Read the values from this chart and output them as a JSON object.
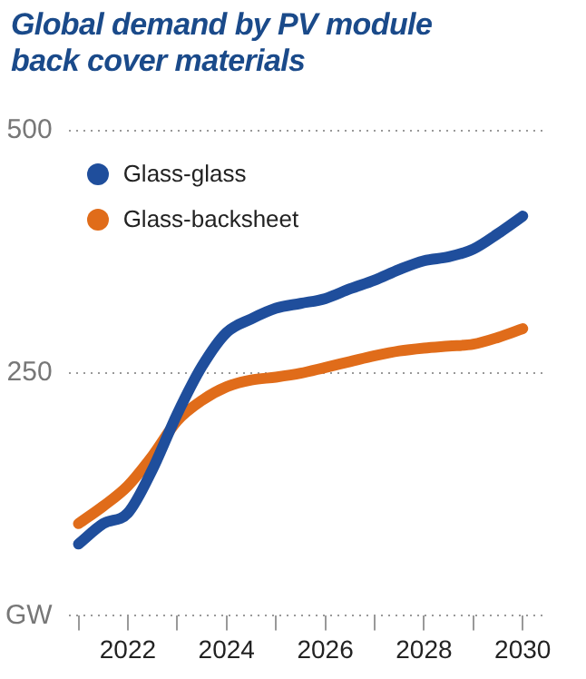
{
  "chart_data": {
    "type": "line",
    "title": "Global demand by PV module back cover materials",
    "x": [
      2021,
      2021.5,
      2022,
      2022.5,
      2023,
      2023.5,
      2024,
      2024.5,
      2025,
      2025.5,
      2026,
      2026.5,
      2027,
      2027.5,
      2028,
      2028.5,
      2029,
      2029.5,
      2030
    ],
    "series": [
      {
        "name": "Glass-glass",
        "color": "#1f4e9c",
        "values": [
          74,
          95,
          106,
          151,
          208,
          257,
          292,
          306,
          317,
          322,
          327,
          337,
          346,
          357,
          366,
          370,
          378,
          394,
          412
        ]
      },
      {
        "name": "Glass-backsheet",
        "color": "#e06c1a",
        "values": [
          95,
          113,
          134,
          165,
          201,
          222,
          236,
          243,
          246,
          250,
          256,
          262,
          268,
          273,
          276,
          278,
          280,
          287,
          296
        ]
      }
    ],
    "xlim": [
      2020.8,
      2030.4
    ],
    "xticks": [
      {
        "value": 2021,
        "label": null
      },
      2022,
      {
        "value": 2023,
        "label": null
      },
      2024,
      {
        "value": 2025,
        "label": null
      },
      2026,
      {
        "value": 2027,
        "label": null
      },
      2028,
      {
        "value": 2029,
        "label": null
      },
      2030
    ],
    "ylim": [
      0,
      500
    ],
    "yticks": [
      {
        "value": 0,
        "label": "GW"
      },
      250,
      500
    ],
    "grid": "y",
    "legend": "top left",
    "marker": "none",
    "line_style": "solid"
  }
}
